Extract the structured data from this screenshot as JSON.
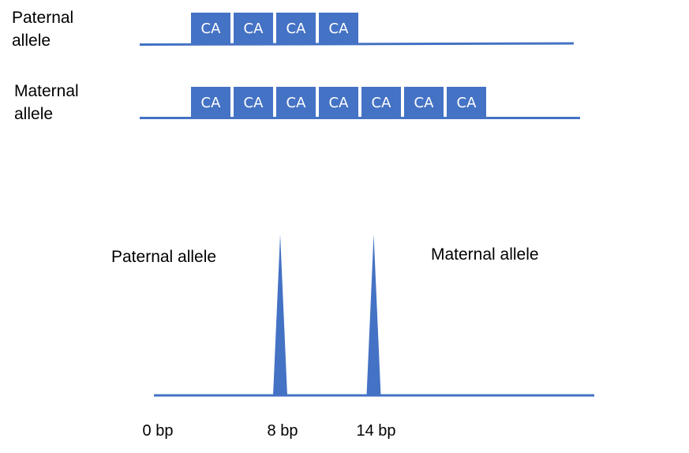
{
  "colors": {
    "accent": "#4472c4"
  },
  "top": {
    "paternal": {
      "label_line1": "Paternal",
      "label_line2": "allele",
      "repeats": [
        "CA",
        "CA",
        "CA",
        "CA"
      ]
    },
    "maternal": {
      "label_line1": "Maternal",
      "label_line2": "allele",
      "repeats": [
        "CA",
        "CA",
        "CA",
        "CA",
        "CA",
        "CA",
        "CA"
      ]
    }
  },
  "bottom": {
    "paternal_label": "Paternal allele",
    "maternal_label": "Maternal allele",
    "ticks": [
      {
        "value": 0,
        "label": "0 bp"
      },
      {
        "value": 8,
        "label": "8 bp"
      },
      {
        "value": 14,
        "label": "14 bp"
      }
    ],
    "peaks": [
      {
        "allele": "Paternal allele",
        "value": 8
      },
      {
        "allele": "Maternal allele",
        "value": 14
      }
    ]
  }
}
